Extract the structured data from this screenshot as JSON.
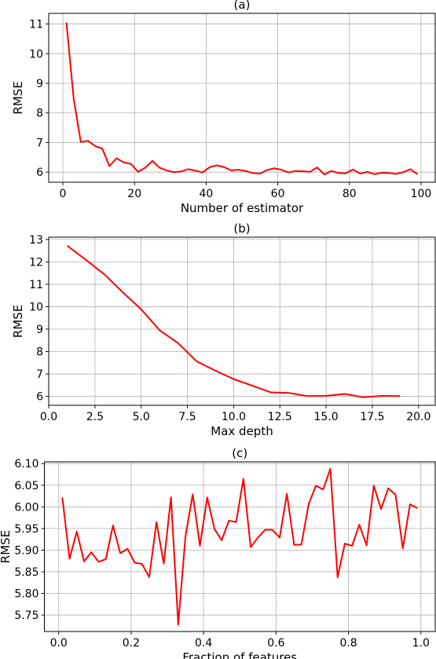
{
  "chart_data": [
    {
      "type": "line",
      "title": "(a)",
      "xlabel": "Number of estimator",
      "ylabel": "RMSE",
      "xlim": [
        -3.95,
        103.95
      ],
      "ylim": [
        5.66,
        11.36
      ],
      "xticks": [
        0,
        20,
        40,
        60,
        80,
        100
      ],
      "xticklabels": [
        "0",
        "20",
        "40",
        "60",
        "80",
        "100"
      ],
      "yticks": [
        6,
        7,
        8,
        9,
        10,
        11
      ],
      "yticklabels": [
        "6",
        "7",
        "8",
        "9",
        "10",
        "11"
      ],
      "grid": true,
      "color": "#ff0000",
      "x": [
        1,
        3,
        5,
        7,
        9,
        11,
        13,
        15,
        17,
        19,
        21,
        23,
        25,
        27,
        29,
        31,
        33,
        35,
        37,
        39,
        41,
        43,
        45,
        47,
        49,
        51,
        53,
        55,
        57,
        59,
        61,
        63,
        65,
        67,
        69,
        71,
        73,
        75,
        77,
        79,
        81,
        83,
        85,
        87,
        89,
        91,
        93,
        95,
        97,
        99
      ],
      "y": [
        11.05,
        8.5,
        7.02,
        7.06,
        6.88,
        6.8,
        6.2,
        6.47,
        6.33,
        6.28,
        6.01,
        6.15,
        6.38,
        6.15,
        6.06,
        6.0,
        6.02,
        6.1,
        6.05,
        5.99,
        6.17,
        6.23,
        6.17,
        6.06,
        6.08,
        6.04,
        5.97,
        5.95,
        6.07,
        6.13,
        6.08,
        5.99,
        6.04,
        6.03,
        6.01,
        6.16,
        5.92,
        6.04,
        5.97,
        5.96,
        6.09,
        5.95,
        6.01,
        5.93,
        5.98,
        5.97,
        5.94,
        6.0,
        6.1,
        5.93
      ]
    },
    {
      "type": "line",
      "title": "(b)",
      "xlabel": "Max depth",
      "ylabel": "RMSE",
      "xlim": [
        0.0,
        20.9
      ],
      "ylim": [
        5.6,
        13.1
      ],
      "xticks": [
        0.0,
        2.5,
        5.0,
        7.5,
        10.0,
        12.5,
        15.0,
        17.5,
        20.0
      ],
      "xticklabels": [
        "0.0",
        "2.5",
        "5.0",
        "7.5",
        "10.0",
        "12.5",
        "15.0",
        "17.5",
        "20.0"
      ],
      "yticks": [
        6,
        7,
        8,
        9,
        10,
        11,
        12,
        13
      ],
      "yticklabels": [
        "6",
        "7",
        "8",
        "9",
        "10",
        "11",
        "12",
        "13"
      ],
      "grid": true,
      "color": "#ff0000",
      "x": [
        1,
        2,
        3,
        4,
        5,
        6,
        7,
        8,
        9,
        10,
        11,
        12,
        13,
        14,
        15,
        16,
        17,
        18,
        19
      ],
      "y": [
        12.72,
        12.1,
        11.45,
        10.65,
        9.88,
        8.95,
        8.37,
        7.56,
        7.15,
        6.77,
        6.48,
        6.18,
        6.15,
        6.01,
        6.02,
        6.11,
        5.96,
        6.02,
        6.01
      ]
    },
    {
      "type": "line",
      "title": "(c)",
      "xlabel": "Fraction of features",
      "ylabel": "RMSE",
      "xlim": [
        -0.0395,
        1.0395
      ],
      "ylim": [
        5.712,
        6.104
      ],
      "xticks": [
        0.0,
        0.2,
        0.4,
        0.6,
        0.8,
        1.0
      ],
      "xticklabels": [
        "0.0",
        "0.2",
        "0.4",
        "0.6",
        "0.8",
        "1.0"
      ],
      "yticks": [
        5.75,
        5.8,
        5.85,
        5.9,
        5.95,
        6.0,
        6.05,
        6.1
      ],
      "yticklabels": [
        "5.75",
        "5.80",
        "5.85",
        "5.90",
        "5.95",
        "6.00",
        "6.05",
        "6.10"
      ],
      "grid": true,
      "color": "#ff0000",
      "x": [
        0.01,
        0.03,
        0.05,
        0.07,
        0.09,
        0.11,
        0.13,
        0.15,
        0.17,
        0.19,
        0.21,
        0.23,
        0.25,
        0.27,
        0.29,
        0.31,
        0.33,
        0.35,
        0.37,
        0.39,
        0.41,
        0.43,
        0.45,
        0.47,
        0.49,
        0.51,
        0.53,
        0.55,
        0.57,
        0.59,
        0.61,
        0.63,
        0.65,
        0.67,
        0.69,
        0.71,
        0.73,
        0.75,
        0.77,
        0.79,
        0.81,
        0.83,
        0.85,
        0.87,
        0.89,
        0.91,
        0.93,
        0.95,
        0.97,
        0.99
      ],
      "y": [
        6.022,
        5.88,
        5.943,
        5.874,
        5.895,
        5.873,
        5.879,
        5.957,
        5.893,
        5.903,
        5.871,
        5.868,
        5.838,
        5.965,
        5.869,
        6.022,
        5.728,
        5.932,
        6.029,
        5.91,
        6.022,
        5.949,
        5.923,
        5.968,
        5.965,
        6.065,
        5.907,
        5.929,
        5.947,
        5.947,
        5.929,
        6.03,
        5.912,
        5.913,
        6.006,
        6.049,
        6.04,
        6.088,
        5.837,
        5.915,
        5.91,
        5.959,
        5.911,
        6.049,
        5.995,
        6.043,
        6.028,
        5.904,
        6.006,
        5.997
      ]
    }
  ]
}
